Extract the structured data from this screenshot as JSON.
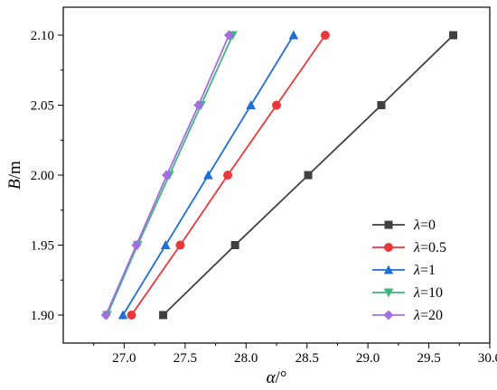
{
  "chart_data": {
    "type": "line",
    "xlabel": {
      "symbol": "α",
      "unit": "/°"
    },
    "ylabel": {
      "symbol": "B",
      "unit": "/m"
    },
    "xlim": [
      26.5,
      30.0
    ],
    "ylim": [
      1.88,
      2.12
    ],
    "xticks": [
      "27.0",
      "27.5",
      "28.0",
      "28.5",
      "29.0",
      "29.5",
      "30.0"
    ],
    "yticks": [
      "1.90",
      "1.95",
      "2.00",
      "2.05",
      "2.10"
    ],
    "legend_position": "bottom-right",
    "grid": false,
    "series": [
      {
        "name": "λ=0",
        "symbol": "λ",
        "value_text": "=0",
        "color": "#404040",
        "marker": "square",
        "x": [
          27.32,
          27.91,
          28.51,
          29.11,
          29.7
        ],
        "y": [
          1.9,
          1.95,
          2.0,
          2.05,
          2.1
        ]
      },
      {
        "name": "λ=0.5",
        "symbol": "λ",
        "value_text": "=0.5",
        "color": "#e8383a",
        "marker": "circle",
        "x": [
          27.06,
          27.46,
          27.85,
          28.25,
          28.65
        ],
        "y": [
          1.9,
          1.95,
          2.0,
          2.05,
          2.1
        ]
      },
      {
        "name": "λ=1",
        "symbol": "λ",
        "value_text": "=1",
        "color": "#1f6fd6",
        "marker": "triangle-up",
        "x": [
          26.99,
          27.34,
          27.69,
          28.04,
          28.39
        ],
        "y": [
          1.9,
          1.95,
          2.0,
          2.05,
          2.1
        ]
      },
      {
        "name": "λ=10",
        "symbol": "λ",
        "value_text": "=10",
        "color": "#3db87a",
        "marker": "triangle-down",
        "x": [
          26.86,
          27.11,
          27.37,
          27.63,
          27.89
        ],
        "y": [
          1.9,
          1.95,
          2.0,
          2.05,
          2.1
        ]
      },
      {
        "name": "λ=20",
        "symbol": "λ",
        "value_text": "=20",
        "color": "#a56ee0",
        "marker": "diamond",
        "x": [
          26.85,
          27.1,
          27.35,
          27.61,
          27.86
        ],
        "y": [
          1.9,
          1.95,
          2.0,
          2.05,
          2.1
        ]
      }
    ]
  }
}
